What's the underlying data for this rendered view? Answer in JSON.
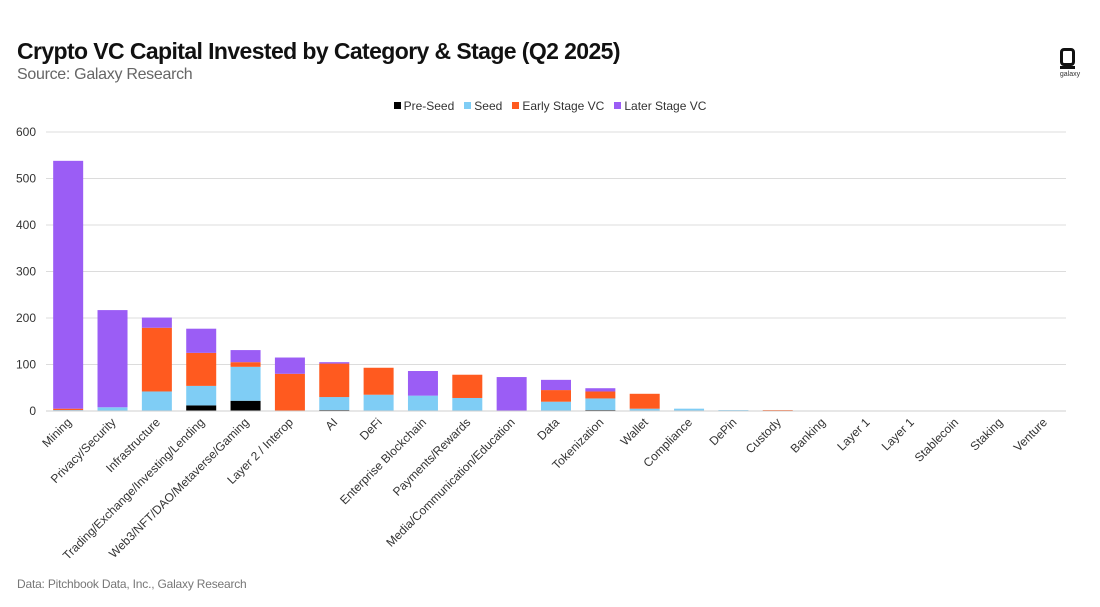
{
  "header": {
    "title": "Crypto VC Capital Invested by Category & Stage (Q2 2025)",
    "subtitle": "Source: Galaxy Research"
  },
  "footer": {
    "text": "Data: Pitchbook Data, Inc., Galaxy Research"
  },
  "logo": {
    "text": "galaxy",
    "icon": "galaxy-logo-icon"
  },
  "chart_data": {
    "type": "bar",
    "stacked": true,
    "title": "Crypto VC Capital Invested by Category & Stage (Q2 2025)",
    "xlabel": "",
    "ylabel": "",
    "ylim": [
      0,
      600
    ],
    "yticks": [
      0,
      100,
      200,
      300,
      400,
      500,
      600
    ],
    "grid": true,
    "legend_position": "top-center",
    "categories": [
      "Mining",
      "Privacy/Security",
      "Infrastructure",
      "Trading/Exchange/Investing/Lending",
      "Web3/NFT/DAO/Metaverse/Gaming",
      "Layer 2 / Interop",
      "AI",
      "DeFi",
      "Enterprise Blockchain",
      "Payments/Rewards",
      "Media/Communication/Education",
      "Data",
      "Tokenization",
      "Wallet",
      "Compliance",
      "DePin",
      "Custody",
      "Banking",
      "Layer 1",
      "Layer 1",
      "Stablecoin",
      "Staking",
      "Venture"
    ],
    "series": [
      {
        "name": "Pre-Seed",
        "color": "#000000",
        "values": [
          0,
          0,
          0,
          12,
          22,
          0,
          2,
          0,
          0,
          0,
          0,
          0,
          2,
          0,
          0,
          0,
          0,
          0,
          0,
          0,
          0,
          0,
          0
        ]
      },
      {
        "name": "Seed",
        "color": "#7FCDF5",
        "values": [
          2,
          8,
          42,
          42,
          73,
          0,
          28,
          35,
          33,
          28,
          0,
          20,
          25,
          5,
          5,
          2,
          0,
          0,
          0,
          0,
          0,
          0,
          0
        ]
      },
      {
        "name": "Early Stage VC",
        "color": "#FF5A1F",
        "values": [
          3,
          0,
          137,
          71,
          10,
          80,
          72,
          58,
          0,
          50,
          0,
          25,
          15,
          32,
          0,
          0,
          2,
          0,
          0,
          0,
          0,
          0,
          0
        ]
      },
      {
        "name": "Later Stage VC",
        "color": "#9B5DF5",
        "values": [
          533,
          209,
          22,
          52,
          26,
          35,
          3,
          0,
          53,
          0,
          73,
          22,
          7,
          0,
          0,
          0,
          0,
          0,
          0,
          0,
          0,
          0,
          0
        ]
      }
    ]
  }
}
